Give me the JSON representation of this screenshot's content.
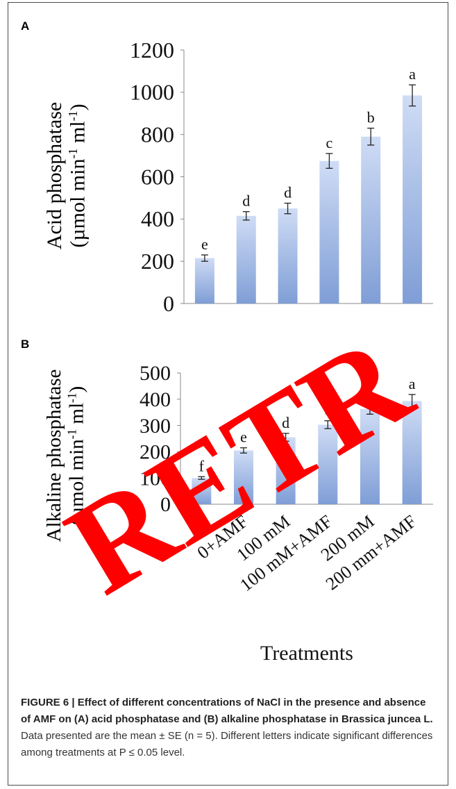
{
  "panels": {
    "a_letter": "A",
    "b_letter": "B"
  },
  "watermark": "RETR",
  "colors": {
    "bar_top": "#cfdcf5",
    "bar_bottom": "#7f9ed6",
    "watermark": "#ff0000",
    "axis": "#888888"
  },
  "chart_data": [
    {
      "type": "bar",
      "panel": "A",
      "title": "",
      "xlabel": "",
      "ylabel_lines": [
        "Acid phosphatase",
        "(µmol min-1 ml-1)"
      ],
      "ylim": [
        0,
        1200
      ],
      "yticks": [
        "0",
        "200",
        "400",
        "600",
        "800",
        "1000",
        "1200"
      ],
      "categories": [
        "0",
        "0+AMF",
        "100 mM",
        "100 mM+AMF",
        "200 mM",
        "200 mm+AMF"
      ],
      "values": [
        215,
        415,
        450,
        675,
        790,
        985
      ],
      "errors": [
        15,
        20,
        25,
        35,
        40,
        50
      ],
      "letters": [
        "e",
        "d",
        "d",
        "c",
        "b",
        "a"
      ]
    },
    {
      "type": "bar",
      "panel": "B",
      "title": "",
      "xlabel": "Treatments",
      "ylabel_lines": [
        "Alkaline phosphatase",
        "(µmol min-1 ml-1)"
      ],
      "ylim": [
        0,
        500
      ],
      "yticks": [
        "0",
        "100",
        "200",
        "300",
        "400",
        "500"
      ],
      "categories": [
        "0",
        "0+AMF",
        "100 mM",
        "100 mM+AMF",
        "200 mM",
        "200 mm+AMF"
      ],
      "values": [
        100,
        205,
        255,
        303,
        363,
        393
      ],
      "errors": [
        5,
        10,
        15,
        15,
        20,
        25
      ],
      "letters": [
        "f",
        "e",
        "d",
        "c",
        "b",
        "a"
      ]
    }
  ],
  "caption": {
    "bold_text": "FIGURE 6 | Effect of different concentrations of NaCl in the presence and absence of AMF on (A) acid phosphatase and (B) alkaline phosphatase in Brassica juncea L.",
    "rest_text": " Data presented are the mean ± SE (n = 5). Different letters indicate significant differences among treatments at P ≤ 0.05 level."
  }
}
